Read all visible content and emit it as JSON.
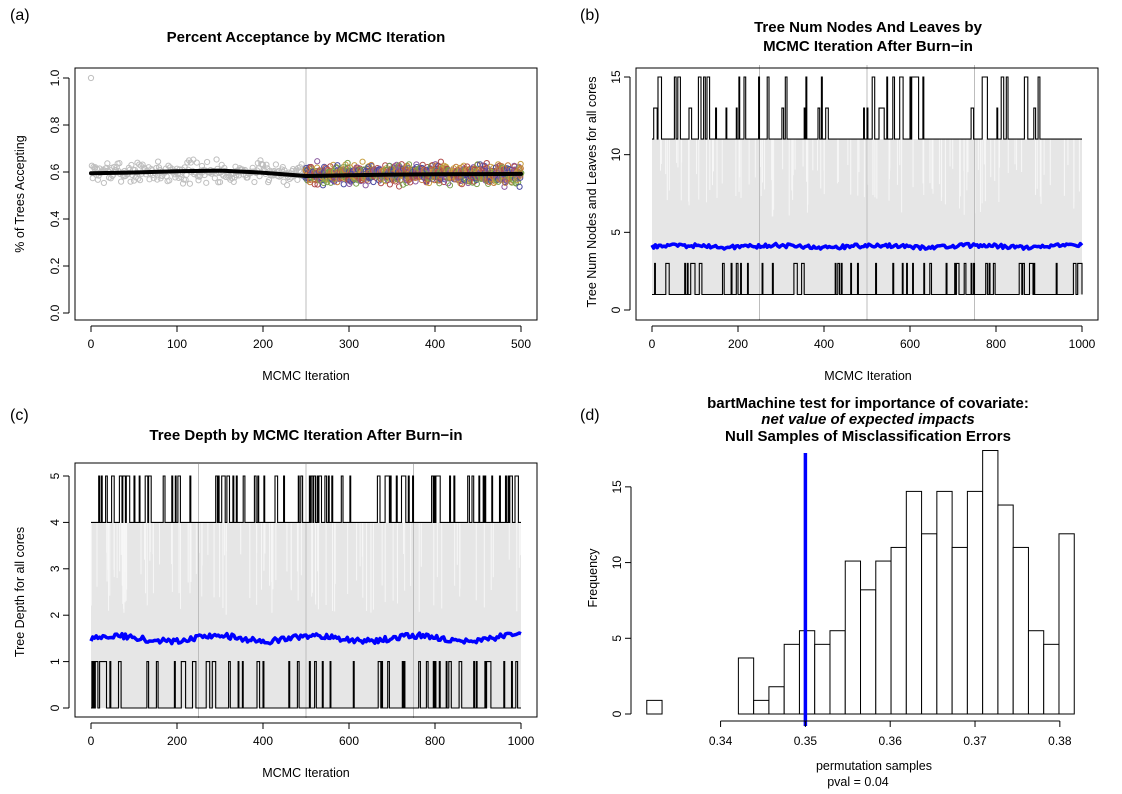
{
  "chart_data": [
    {
      "panel": "(a)",
      "type": "scatter",
      "title": "Percent Acceptance by MCMC Iteration",
      "xlabel": "MCMC Iteration",
      "ylabel": "% of Trees Accepting",
      "xlim": [
        0,
        500
      ],
      "ylim": [
        0,
        1
      ],
      "xticks": [
        0,
        100,
        200,
        300,
        400,
        500
      ],
      "yticks": [
        "0.0",
        "0.2",
        "0.4",
        "0.6",
        "0.8",
        "1.0"
      ],
      "burn_in_line_x": 250,
      "outlier_point": [
        0,
        1.0
      ],
      "burn_in_points": {
        "color": "#bfbfbf",
        "x_range": [
          0,
          250
        ],
        "mean": 0.6,
        "spread": 0.035
      },
      "post_burn_in_points": {
        "colors": [
          "#c47a3a",
          "#4a4aa0",
          "#7aa04a",
          "#b04a4a",
          "#c8a040",
          "#8a5aa0"
        ],
        "x_range": [
          250,
          500
        ],
        "mean": 0.59,
        "spread": 0.03
      },
      "smooth_line": {
        "color": "#000000",
        "x": [
          0,
          50,
          100,
          150,
          200,
          250,
          300,
          350,
          400,
          450,
          500
        ],
        "y": [
          0.595,
          0.598,
          0.603,
          0.606,
          0.597,
          0.583,
          0.586,
          0.589,
          0.59,
          0.591,
          0.592
        ]
      }
    },
    {
      "panel": "(b)",
      "type": "line",
      "title": "Tree Num Nodes And Leaves by MCMC Iteration After Burn−in",
      "title_lines": [
        "Tree Num Nodes And Leaves by",
        "MCMC Iteration After Burn−in"
      ],
      "xlabel": "MCMC Iteration",
      "ylabel": "Tree Num Nodes and Leaves for all cores",
      "xlim": [
        0,
        1000
      ],
      "ylim": [
        0,
        15
      ],
      "xticks": [
        0,
        200,
        400,
        600,
        800,
        1000
      ],
      "yticks": [
        0,
        5,
        10,
        15
      ],
      "core_separators_x": [
        250,
        500,
        750
      ],
      "band": {
        "color": "#e6e6e6",
        "low": 1,
        "high": 11
      },
      "max_series": {
        "name": "max",
        "base": 11,
        "levels": [
          11,
          13,
          15
        ]
      },
      "min_series": {
        "name": "min",
        "base": 1,
        "levels": [
          1,
          3
        ]
      },
      "mean_series": {
        "name": "mean",
        "color": "#0000ff",
        "value": 4.1
      }
    },
    {
      "panel": "(c)",
      "type": "line",
      "title": "Tree Depth by MCMC Iteration After Burn−in",
      "xlabel": "MCMC Iteration",
      "ylabel": "Tree Depth for all cores",
      "xlim": [
        0,
        1000
      ],
      "ylim": [
        0,
        5
      ],
      "xticks": [
        0,
        200,
        400,
        600,
        800,
        1000
      ],
      "yticks": [
        0,
        1,
        2,
        3,
        4,
        5
      ],
      "core_separators_x": [
        250,
        500,
        750
      ],
      "band": {
        "color": "#e6e6e6",
        "low": 0,
        "high": 4
      },
      "max_series": {
        "name": "max",
        "base": 4,
        "levels": [
          4,
          5
        ]
      },
      "min_series": {
        "name": "min",
        "base": 0,
        "levels": [
          0,
          1
        ]
      },
      "mean_series": {
        "name": "mean",
        "color": "#0000ff",
        "value": 1.5
      }
    },
    {
      "panel": "(d)",
      "type": "bar",
      "title_lines": [
        "bartMachine test for importance of covariate:",
        "net value of expected impacts",
        "Null Samples of Misclassification Errors"
      ],
      "xlabel": "permutation samples",
      "subxlabel": "pval = 0.04",
      "ylabel": "Frequency",
      "xlim": [
        0.3305,
        0.3845
      ],
      "ylim": [
        0,
        17.5
      ],
      "xticks": [
        "0.34",
        "0.35",
        "0.36",
        "0.37",
        "0.38"
      ],
      "yticks": [
        0,
        5,
        10,
        15
      ],
      "bin_width": 0.0018,
      "bin_starts": [
        0.3313,
        0.3331,
        0.3349,
        0.3367,
        0.3385,
        0.3403,
        0.3421,
        0.3439,
        0.3457,
        0.3475,
        0.3493,
        0.3511,
        0.3529,
        0.3547,
        0.3565,
        0.3583,
        0.3601,
        0.3619,
        0.3637,
        0.3655,
        0.3673,
        0.3691,
        0.3709,
        0.3727,
        0.3745,
        0.3763,
        0.3781,
        0.3799,
        0.3817
      ],
      "values": [
        0.9,
        0,
        0,
        0,
        0,
        0,
        3.7,
        0.9,
        1.8,
        4.6,
        5.5,
        4.6,
        5.5,
        10.1,
        8.2,
        10.1,
        11,
        14.7,
        11.9,
        14.7,
        11,
        14.7,
        17.4,
        13.8,
        11,
        5.5,
        4.6,
        11.9,
        0
      ],
      "observed_line": {
        "x": 0.35,
        "color": "#0000ff"
      }
    }
  ]
}
